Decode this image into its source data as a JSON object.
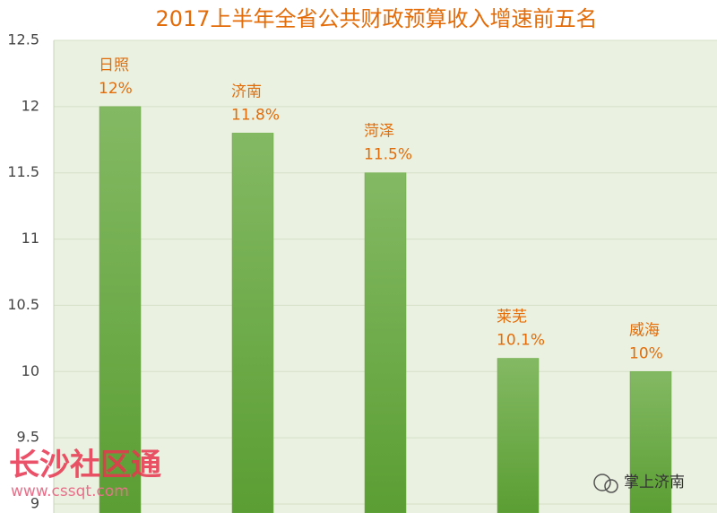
{
  "chart_data": {
    "type": "bar",
    "title": "2017上半年全省公共财政预算收入增速前五名",
    "categories": [
      "日照",
      "济南",
      "菏泽",
      "莱芜",
      "威海"
    ],
    "values": [
      12,
      11.8,
      11.5,
      10.1,
      10
    ],
    "value_labels": [
      "12%",
      "11.8%",
      "11.5%",
      "10.1%",
      "10%"
    ],
    "color": "#6aaa3e",
    "ylim": [
      9,
      12.5
    ],
    "yticks": [
      9,
      9.5,
      10,
      10.5,
      11,
      11.5,
      12,
      12.5
    ],
    "grid": true
  },
  "watermarks": [
    "长沙社区通",
    "www.cssqt.com",
    "掌上济南"
  ]
}
